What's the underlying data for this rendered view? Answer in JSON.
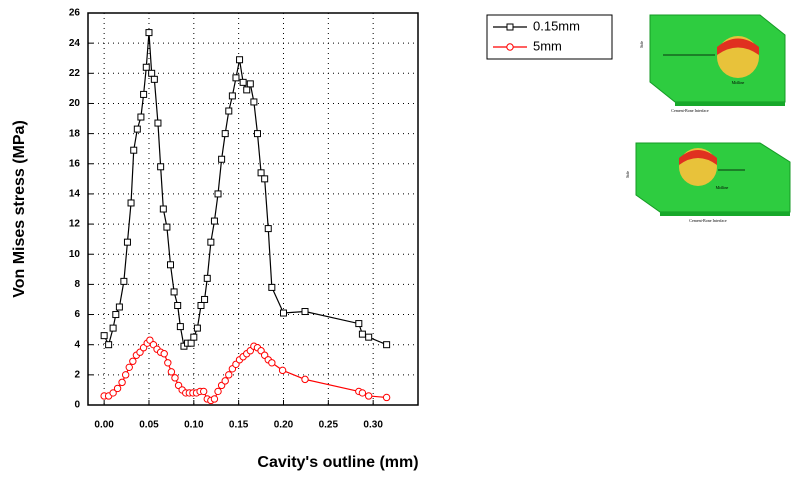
{
  "chart_data": {
    "type": "line",
    "y_label": "Von Mises stress (MPa)",
    "x_label": "Cavity's outline (mm)",
    "xlim": [
      -0.018,
      0.35
    ],
    "ylim": [
      0,
      26
    ],
    "xticks": [
      {
        "value": 0,
        "label": "0.00"
      },
      {
        "value": 0.05,
        "label": "0.05"
      },
      {
        "value": 0.1,
        "label": "0.10"
      },
      {
        "value": 0.15,
        "label": "0.15"
      },
      {
        "value": 0.2,
        "label": "0.20"
      },
      {
        "value": 0.25,
        "label": "0.25"
      },
      {
        "value": 0.3,
        "label": "0.30"
      }
    ],
    "yticks": [
      0,
      2,
      4,
      6,
      8,
      10,
      12,
      14,
      16,
      18,
      20,
      22,
      24,
      26
    ],
    "grid": true,
    "legend": "top-right",
    "series": [
      {
        "name": "0.15mm",
        "color": "#000000",
        "marker": "square",
        "x": [
          0.0,
          0.005,
          0.01,
          0.013,
          0.017,
          0.022,
          0.026,
          0.03,
          0.033,
          0.037,
          0.041,
          0.044,
          0.047,
          0.05,
          0.053,
          0.056,
          0.06,
          0.063,
          0.066,
          0.07,
          0.074,
          0.078,
          0.082,
          0.085,
          0.089,
          0.093,
          0.097,
          0.1,
          0.104,
          0.108,
          0.112,
          0.115,
          0.119,
          0.123,
          0.127,
          0.131,
          0.135,
          0.139,
          0.143,
          0.147,
          0.151,
          0.155,
          0.159,
          0.163,
          0.167,
          0.171,
          0.175,
          0.179,
          0.183,
          0.187,
          0.2,
          0.224,
          0.284,
          0.288,
          0.295,
          0.315
        ],
        "values": [
          4.6,
          4.0,
          5.1,
          6.0,
          6.5,
          8.2,
          10.8,
          13.4,
          16.9,
          18.3,
          19.1,
          20.6,
          22.4,
          24.7,
          22.0,
          21.6,
          18.7,
          15.8,
          13.0,
          11.8,
          9.3,
          7.5,
          6.6,
          5.2,
          3.9,
          4.1,
          4.1,
          4.5,
          5.1,
          6.6,
          7.0,
          8.4,
          10.8,
          12.2,
          14.0,
          16.3,
          18.0,
          19.5,
          20.5,
          21.7,
          22.9,
          21.4,
          20.9,
          21.3,
          20.1,
          18.0,
          15.4,
          15.0,
          11.7,
          7.8,
          6.1,
          6.2,
          5.4,
          4.7,
          4.5,
          4.0
        ]
      },
      {
        "name": "5mm",
        "color": "#ff0000",
        "marker": "circle",
        "x": [
          0.0,
          0.005,
          0.01,
          0.015,
          0.02,
          0.024,
          0.028,
          0.032,
          0.036,
          0.04,
          0.044,
          0.048,
          0.051,
          0.055,
          0.059,
          0.063,
          0.067,
          0.071,
          0.075,
          0.079,
          0.083,
          0.087,
          0.091,
          0.095,
          0.099,
          0.103,
          0.107,
          0.111,
          0.115,
          0.119,
          0.123,
          0.127,
          0.131,
          0.135,
          0.139,
          0.143,
          0.147,
          0.151,
          0.155,
          0.159,
          0.163,
          0.167,
          0.171,
          0.175,
          0.179,
          0.183,
          0.187,
          0.199,
          0.224,
          0.284,
          0.288,
          0.295,
          0.315
        ],
        "values": [
          0.6,
          0.6,
          0.8,
          1.1,
          1.5,
          2.0,
          2.5,
          2.9,
          3.3,
          3.5,
          3.8,
          4.1,
          4.3,
          4.0,
          3.7,
          3.5,
          3.4,
          2.8,
          2.2,
          1.8,
          1.3,
          1.0,
          0.8,
          0.8,
          0.8,
          0.8,
          0.9,
          0.9,
          0.4,
          0.3,
          0.4,
          0.9,
          1.3,
          1.6,
          2.0,
          2.4,
          2.7,
          3.0,
          3.2,
          3.4,
          3.6,
          3.9,
          3.8,
          3.6,
          3.3,
          3.0,
          2.8,
          2.3,
          1.7,
          0.9,
          0.8,
          0.6,
          0.5
        ]
      }
    ],
    "insets": [
      {
        "side": "Side",
        "interface": "Cement-Bone Interface",
        "midline": "Midline"
      },
      {
        "side": "Side",
        "interface": "Cement-Bone Interface",
        "midline": "Midline"
      }
    ]
  }
}
